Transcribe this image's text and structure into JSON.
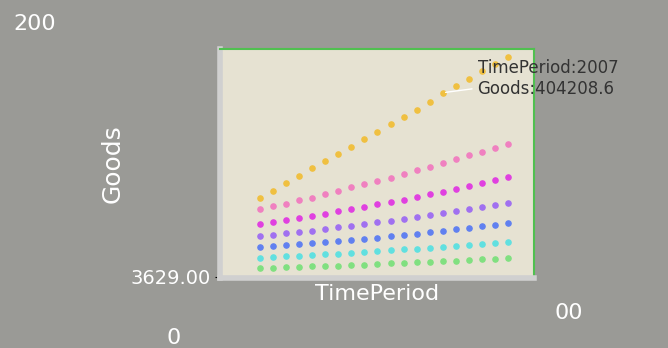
{
  "chart_data": {
    "type": "scatter",
    "x_label": "TimePeriod",
    "y_label": "Goods",
    "x": [
      1993,
      1994,
      1995,
      1996,
      1997,
      1998,
      1999,
      2000,
      2001,
      2002,
      2003,
      2004,
      2005,
      2006,
      2007,
      2008,
      2009,
      2010,
      2011,
      2012
    ],
    "series": [
      {
        "color": "#f0c040",
        "values": [
          176000,
          190500,
          207000,
          222000,
          239500,
          255000,
          271000,
          286500,
          303000,
          318000,
          335500,
          351000,
          366000,
          384500,
          404208.6,
          418000,
          433500,
          451000,
          466000,
          481500
        ]
      },
      {
        "color": "#f080c0",
        "values": [
          150000,
          158000,
          163000,
          171000,
          176000,
          184000,
          190000,
          199000,
          205000,
          213000,
          219000,
          228000,
          236000,
          243000,
          252000,
          259000,
          268000,
          276000,
          284000,
          293000
        ]
      },
      {
        "color": "#e040e0",
        "values": [
          118000,
          122000,
          127000,
          131000,
          136000,
          140000,
          146000,
          150000,
          155000,
          161000,
          166000,
          171000,
          177000,
          183000,
          188000,
          195000,
          201000,
          207000,
          214000,
          220000
        ]
      },
      {
        "color": "#a070f0",
        "values": [
          92000,
          95000,
          98000,
          101000,
          104000,
          108000,
          111000,
          115000,
          118000,
          122000,
          126000,
          130000,
          134000,
          138000,
          142000,
          147000,
          151000,
          156000,
          160000,
          165000
        ]
      },
      {
        "color": "#6080f0",
        "values": [
          68000,
          70000,
          72000,
          74000,
          76500,
          79000,
          81000,
          84000,
          86500,
          89000,
          92000,
          95000,
          97500,
          100500,
          103500,
          107000,
          110000,
          113500,
          117000,
          120500
        ]
      },
      {
        "color": "#60e0e0",
        "values": [
          45000,
          46500,
          48000,
          49500,
          51000,
          52500,
          54000,
          56000,
          57500,
          59500,
          61000,
          63000,
          65000,
          67000,
          69000,
          71000,
          73000,
          75500,
          77500,
          80000
        ]
      },
      {
        "color": "#80e080",
        "values": [
          22000,
          23000,
          24000,
          25000,
          26000,
          27000,
          28000,
          29000,
          30000,
          31500,
          32500,
          33500,
          35000,
          36000,
          37500,
          38500,
          40000,
          41500,
          43000,
          44000
        ]
      }
    ],
    "xlim": [
      1990,
      2014
    ],
    "ylim": [
      0,
      500000
    ],
    "yticks": [
      {
        "value": 3629,
        "label": "3629.00"
      }
    ],
    "tick_labels": "y",
    "marker": "o",
    "grid": false,
    "tooltip": {
      "x": 2007,
      "y": 404208.6,
      "lines": [
        "TimePeriod:2007",
        "Goods:404208.6"
      ]
    },
    "annotations": [
      {
        "text": "200"
      },
      {
        "text": "0"
      },
      {
        "text": "00"
      }
    ]
  }
}
